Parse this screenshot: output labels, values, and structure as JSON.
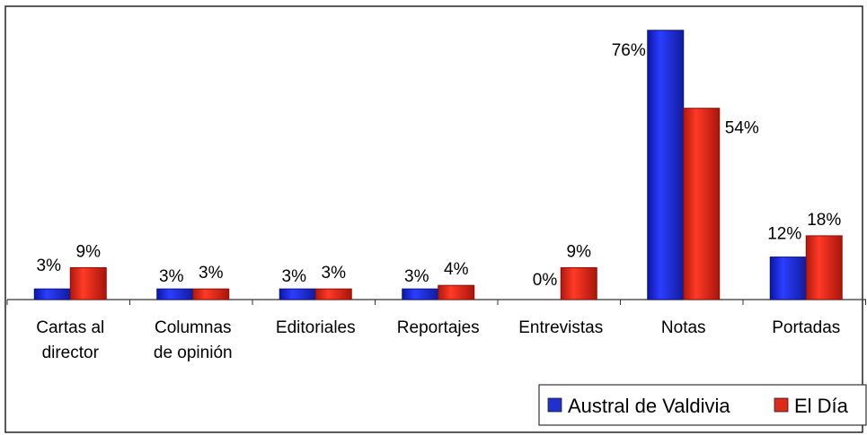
{
  "chart_data": {
    "type": "bar",
    "categories": [
      [
        "Cartas al",
        "director"
      ],
      [
        "Columnas",
        "de opinión"
      ],
      [
        "Editoriales"
      ],
      [
        "Reportajes"
      ],
      [
        "Entrevistas"
      ],
      [
        "Notas"
      ],
      [
        "Portadas"
      ]
    ],
    "series": [
      {
        "name": "Austral de Valdivia",
        "values": [
          3,
          3,
          3,
          3,
          0,
          76,
          12
        ],
        "labels": [
          "3%",
          "3%",
          "3%",
          "3%",
          "0%",
          "76%",
          "12%"
        ],
        "color": "#1f2fd0"
      },
      {
        "name": "El Día",
        "values": [
          9,
          3,
          3,
          4,
          9,
          54,
          18
        ],
        "labels": [
          "9%",
          "3%",
          "3%",
          "4%",
          "9%",
          "54%",
          "18%"
        ],
        "color": "#dc2a1c"
      }
    ],
    "ylim": [
      0,
      80
    ],
    "grid": false,
    "legend_position": "bottom-right"
  }
}
